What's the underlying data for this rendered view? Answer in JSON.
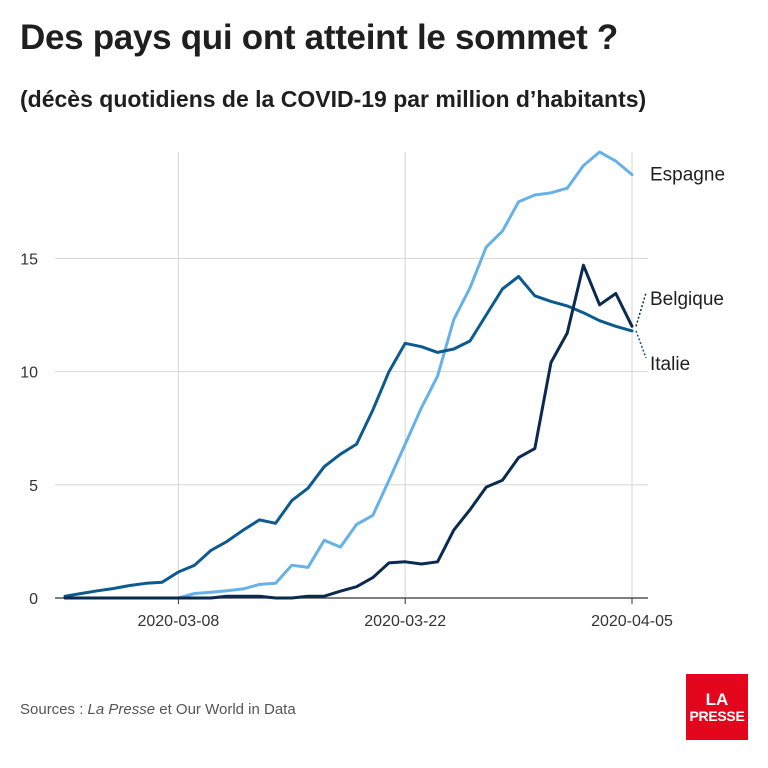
{
  "title": "Des pays qui ont atteint le sommet ?",
  "subtitle": "(décès quotidiens de la COVID-19 par million d’habitants)",
  "source": {
    "prefix": "Sources : ",
    "publication": "La Presse",
    "suffix": " et Our World in Data"
  },
  "logo": {
    "line1": "LA",
    "line2": "PRESSE"
  },
  "colors": {
    "espagne": "#66b2e8",
    "italie": "#0d5a8e",
    "belgique": "#0a2a4f",
    "grid": "#d6d6d6",
    "axis": "#333333",
    "logo": "#e3061c"
  },
  "chart_data": {
    "type": "line",
    "x": [
      "2020-03-01",
      "2020-03-02",
      "2020-03-03",
      "2020-03-04",
      "2020-03-05",
      "2020-03-06",
      "2020-03-07",
      "2020-03-08",
      "2020-03-09",
      "2020-03-10",
      "2020-03-11",
      "2020-03-12",
      "2020-03-13",
      "2020-03-14",
      "2020-03-15",
      "2020-03-16",
      "2020-03-17",
      "2020-03-18",
      "2020-03-19",
      "2020-03-20",
      "2020-03-21",
      "2020-03-22",
      "2020-03-23",
      "2020-03-24",
      "2020-03-25",
      "2020-03-26",
      "2020-03-27",
      "2020-03-28",
      "2020-03-29",
      "2020-03-30",
      "2020-03-31",
      "2020-04-01",
      "2020-04-02",
      "2020-04-03",
      "2020-04-04",
      "2020-04-05"
    ],
    "x_ticks": [
      "2020-03-08",
      "2020-03-22",
      "2020-04-05"
    ],
    "y_ticks": [
      0,
      5,
      10,
      15
    ],
    "ylim": [
      0,
      19.7
    ],
    "grid": true,
    "series": [
      {
        "name": "Espagne",
        "color": "#66b2e8",
        "values": [
          0,
          0,
          0,
          0,
          0,
          0,
          0,
          0,
          0.2,
          0.25,
          0.32,
          0.4,
          0.6,
          0.65,
          1.45,
          1.35,
          2.55,
          2.25,
          3.25,
          3.65,
          5.2,
          6.8,
          8.4,
          9.8,
          12.3,
          13.7,
          15.5,
          16.2,
          17.5,
          17.8,
          17.9,
          18.1,
          19.1,
          19.7,
          19.3,
          18.7
        ]
      },
      {
        "name": "Italie",
        "color": "#0d5a8e",
        "values": [
          0.08,
          0.2,
          0.32,
          0.42,
          0.55,
          0.65,
          0.7,
          1.15,
          1.45,
          2.1,
          2.5,
          3.0,
          3.45,
          3.3,
          4.3,
          4.85,
          5.8,
          6.35,
          6.8,
          8.3,
          10.0,
          11.25,
          11.1,
          10.85,
          11.0,
          11.35,
          12.5,
          13.65,
          14.2,
          13.35,
          13.1,
          12.9,
          12.6,
          12.25,
          12.0,
          11.8
        ]
      },
      {
        "name": "Belgique",
        "color": "#0a2a4f",
        "values": [
          0,
          0,
          0,
          0,
          0,
          0,
          0,
          0,
          0,
          0,
          0.08,
          0.08,
          0.08,
          0,
          0,
          0.08,
          0.08,
          0.3,
          0.5,
          0.9,
          1.55,
          1.6,
          1.5,
          1.6,
          3.0,
          3.9,
          4.9,
          5.2,
          6.2,
          6.6,
          10.4,
          11.7,
          14.7,
          12.95,
          13.45,
          12.0
        ]
      }
    ]
  }
}
